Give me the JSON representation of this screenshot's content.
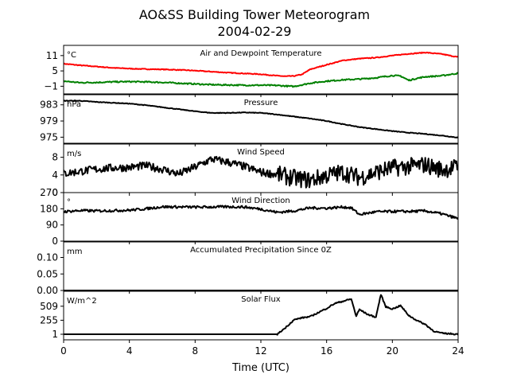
{
  "title_line1": "AO&SS Building Tower Meteorogram",
  "title_line2": "2004-02-29",
  "xlabel": "Time (UTC)",
  "chart_data": {
    "type": "line",
    "x_range": [
      0,
      24
    ],
    "x_ticks": [
      0,
      4,
      8,
      12,
      16,
      20,
      24
    ],
    "panels": [
      {
        "title": "Air and Dewpoint Temperature",
        "unit": "°C",
        "ylim": [
          -4,
          15
        ],
        "yticks": [
          -1,
          5,
          11
        ],
        "ytick_labels": [
          "−1",
          "5",
          "11"
        ],
        "series": [
          {
            "color": "#ff0000",
            "x": [
              0,
              1,
              2,
              3,
              4,
              5,
              6,
              7,
              8,
              9,
              10,
              11,
              12,
              13,
              13.5,
              14,
              14.5,
              15,
              16,
              17,
              18,
              19,
              20,
              21,
              22,
              23,
              24
            ],
            "y": [
              7.8,
              7.2,
              6.7,
              6.2,
              5.9,
              5.7,
              5.6,
              5.4,
              5.1,
              4.7,
              4.3,
              4.0,
              3.7,
              3.1,
              2.9,
              3.0,
              3.6,
              5.6,
              7.4,
              9.1,
              9.8,
              10.2,
              11.0,
              11.7,
              12.2,
              11.6,
              10.4
            ]
          },
          {
            "color": "#008000",
            "x": [
              0,
              1,
              2,
              3,
              4,
              5,
              6,
              7,
              8,
              9,
              10,
              11,
              12,
              13,
              14,
              15,
              16,
              17,
              18,
              19,
              20,
              20.5,
              21,
              21.5,
              22,
              23,
              24
            ],
            "y": [
              1.0,
              0.4,
              0.5,
              0.7,
              0.8,
              0.7,
              0.5,
              0.2,
              -0.1,
              -0.4,
              -0.5,
              -0.6,
              -0.6,
              -0.7,
              -1.1,
              0.2,
              1.0,
              1.5,
              1.8,
              2.3,
              3.2,
              3.0,
              1.3,
              2.1,
              2.7,
              3.1,
              4.1
            ]
          }
        ]
      },
      {
        "title": "Pressure",
        "unit": "hPa",
        "ylim": [
          973.5,
          985.5
        ],
        "yticks": [
          975,
          979,
          983
        ],
        "ytick_labels": [
          "975",
          "979",
          "983"
        ],
        "series": [
          {
            "color": "#000000",
            "x": [
              0,
              1,
              2,
              3,
              4,
              5,
              6,
              7,
              8,
              9,
              10,
              11,
              12,
              13,
              14,
              15,
              16,
              17,
              18,
              19,
              20,
              21,
              22,
              23,
              24
            ],
            "y": [
              984.0,
              984.0,
              983.7,
              983.5,
              983.3,
              982.9,
              982.4,
              981.9,
              981.4,
              981.0,
              981.0,
              981.1,
              981.0,
              980.6,
              980.1,
              979.6,
              979.0,
              978.2,
              977.5,
              977.0,
              976.5,
              976.1,
              975.8,
              975.4,
              974.9
            ]
          }
        ]
      },
      {
        "title": "Wind Speed",
        "unit": "m/s",
        "ylim": [
          0,
          11
        ],
        "yticks": [
          0,
          4,
          8
        ],
        "ytick_labels": [
          "0",
          "4",
          "8"
        ],
        "series": [
          {
            "color": "#000000",
            "x": [
              0,
              1,
              2,
              3,
              4,
              5,
              6,
              7,
              8,
              9,
              10,
              11,
              12,
              13,
              14,
              15,
              16,
              17,
              18,
              19,
              20,
              21,
              22,
              23,
              24
            ],
            "y": [
              4.3,
              4.8,
              5.3,
              5.6,
              5.7,
              6.1,
              5.3,
              4.2,
              5.8,
              7.6,
              6.9,
              5.9,
              4.6,
              4.1,
              3.3,
              2.8,
              3.9,
              4.6,
              3.4,
              4.6,
              5.6,
              5.9,
              6.3,
              5.2,
              5.8
            ]
          }
        ]
      },
      {
        "title": "Wind Direction",
        "unit": "°",
        "ylim": [
          0,
          270
        ],
        "yticks": [
          0,
          90,
          180,
          270
        ],
        "ytick_labels": [
          "0",
          "90",
          "180",
          "270"
        ],
        "series": [
          {
            "color": "#000000",
            "x": [
              0,
              1,
              2,
              3,
              4,
              5,
              6,
              7,
              8,
              9,
              10,
              11,
              12,
              13,
              14,
              15,
              16,
              17,
              17.5,
              18,
              19,
              20,
              21,
              22,
              23,
              24
            ],
            "y": [
              164,
              170,
              168,
              170,
              172,
              180,
              191,
              190,
              189,
              190,
              191,
              190,
              178,
              160,
              168,
              185,
              183,
              190,
              185,
              148,
              163,
              165,
              165,
              168,
              152,
              125
            ]
          }
        ]
      },
      {
        "title": "Accumulated Precipitation Since 0Z",
        "unit": "mm",
        "ylim": [
          0,
          0.147
        ],
        "yticks": [
          0.0,
          0.05,
          0.1
        ],
        "ytick_labels": [
          "0.00",
          "0.05",
          "0.10"
        ],
        "series": [
          {
            "color": "#000000",
            "x": [
              0,
              24
            ],
            "y": [
              0,
              0
            ]
          }
        ]
      },
      {
        "title": "Solar Flux",
        "unit": "W/m^2",
        "ylim": [
          -100,
          780
        ],
        "yticks": [
          1,
          255,
          509
        ],
        "ytick_labels": [
          "1",
          "255",
          "509"
        ],
        "series": [
          {
            "color": "#000000",
            "x": [
              0,
              12,
              13,
              13.5,
              14,
              14.5,
              15,
              16,
              16.5,
              17,
              17.5,
              17.8,
              18,
              18.5,
              19,
              19.3,
              19.6,
              20,
              20.5,
              21,
              21.5,
              22,
              22.5,
              23,
              24
            ],
            "y": [
              1,
              1,
              1,
              120,
              260,
              300,
              320,
              470,
              560,
              600,
              640,
              330,
              450,
              360,
              310,
              720,
              500,
              460,
              520,
              340,
              250,
              180,
              60,
              20,
              1
            ]
          }
        ]
      }
    ]
  }
}
